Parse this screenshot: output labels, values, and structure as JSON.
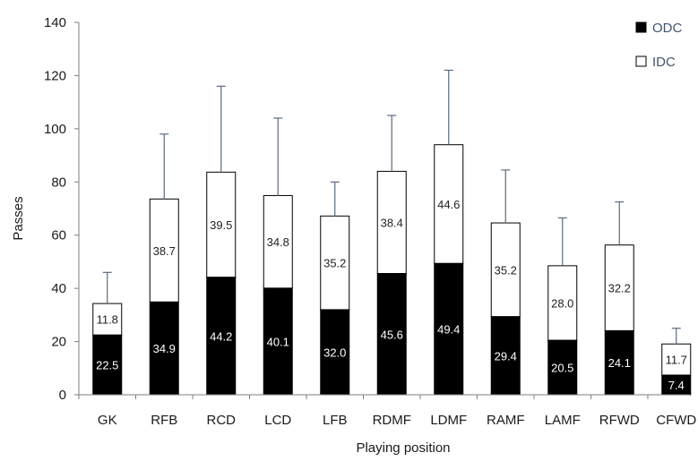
{
  "chart_data": {
    "type": "bar",
    "stacked": true,
    "error_bars": true,
    "categories": [
      "GK",
      "RFB",
      "RCD",
      "LCD",
      "LFB",
      "RDMF",
      "LDMF",
      "RAMF",
      "LAMF",
      "RFWD",
      "CFWD"
    ],
    "series": [
      {
        "name": "ODC",
        "color": "#000000",
        "label_color": "#ffffff",
        "values": [
          22.5,
          34.9,
          44.2,
          40.1,
          32.0,
          45.6,
          49.4,
          29.4,
          20.5,
          24.1,
          7.4
        ]
      },
      {
        "name": "IDC",
        "color": "#ffffff",
        "label_color": "#222222",
        "values": [
          11.8,
          38.7,
          39.5,
          34.8,
          35.2,
          38.4,
          44.6,
          35.2,
          28.0,
          32.2,
          11.7
        ]
      }
    ],
    "data_labels": [
      [
        "22.5",
        "34.9",
        "44.2",
        "40.1",
        "32.0",
        "45.6",
        "49.4",
        "29.4",
        "20.5",
        "24.1",
        "7.4"
      ],
      [
        "11.8",
        "38.7",
        "39.5",
        "34.8",
        "35.2",
        "38.4",
        "44.6",
        "35.2",
        "28.0",
        "32.2",
        "11.7"
      ]
    ],
    "error_upper": [
      46,
      98,
      116,
      104,
      80,
      105,
      122,
      84.5,
      66.5,
      72.5,
      25
    ],
    "xlabel": "Playing position",
    "ylabel": "Passes",
    "ylim": [
      0,
      140
    ],
    "yticks": [
      0,
      20,
      40,
      60,
      80,
      100,
      120,
      140
    ],
    "legend_position": "top-right",
    "grid": false
  }
}
